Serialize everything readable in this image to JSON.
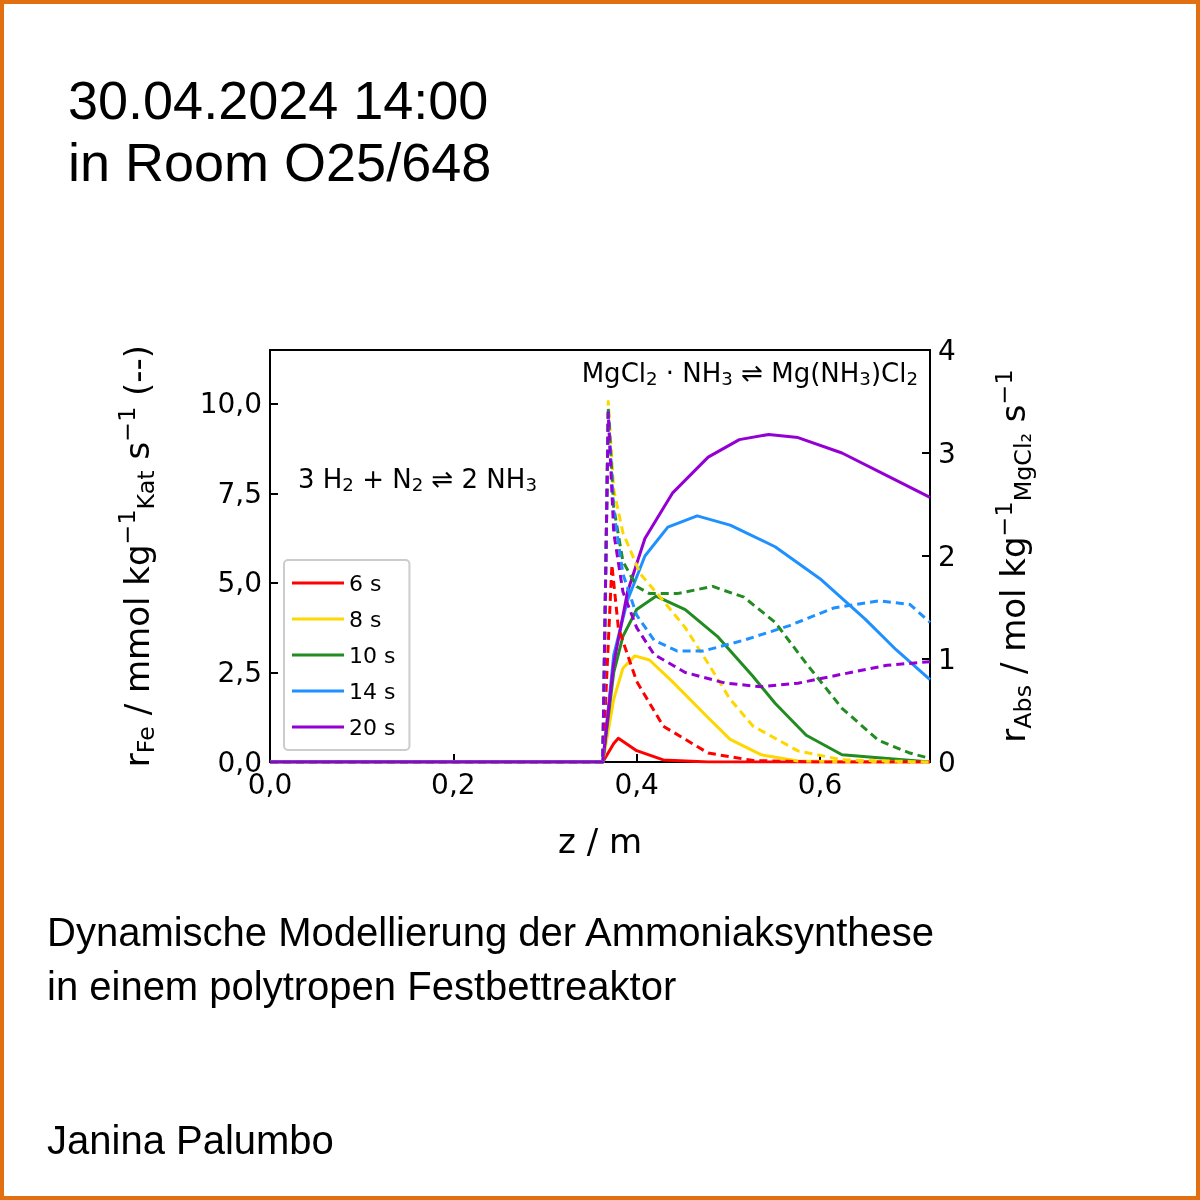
{
  "chart_data": {
    "type": "line",
    "title": "30.04.2024 14:00",
    "subtitle": "in Room O25/648",
    "xlabel": "z / m",
    "ylabel": "r$_{Fe}$ / mmol kg$^{−1}$$_{Kat}$ s$^{−1}$ (--)",
    "y2label": "r$_{Abs}$ / mol kg$^{−1}$$_{MgCl₂}$ s$^{−1}$",
    "annotations": [
      "3 H$_{2}$ + N$_{2}$ ⇌ 2 NH$_{3}$",
      "MgCl$_{2}$ · NH$_{3}$ ⇌ Mg(NH$_{3}$)Cl$_{2}$",
      "Dynamische Modellierung der Ammoniaksynthese\nin einem polytropen Festbettreaktor",
      "Janina Palumbo"
    ],
    "xlim": [
      0,
      0.72
    ],
    "xticks": [
      {
        "value": 0,
        "label": "0,0"
      },
      {
        "value": 0.2,
        "label": "0,2"
      },
      {
        "value": 0.4,
        "label": "0,4"
      },
      {
        "value": 0.6,
        "label": "0,6"
      }
    ],
    "ylim": [
      0,
      11.5
    ],
    "yticks": [
      {
        "value": 0,
        "label": "0,0"
      },
      {
        "value": 2.5,
        "label": "2,5"
      },
      {
        "value": 5,
        "label": "5,0"
      },
      {
        "value": 7.5,
        "label": "7,5"
      },
      {
        "value": 10,
        "label": "10,0"
      }
    ],
    "y2lim": [
      0,
      4
    ],
    "y2ticks": [
      0,
      1,
      2,
      3,
      4
    ],
    "grid": false,
    "legend": "bottom left",
    "marker": "none",
    "series": [
      {
        "name": "6 s",
        "color": "#ff0000",
        "axis": "y2",
        "line_style": "solid",
        "x": [
          0,
          0.363,
          0.375,
          0.38,
          0.4,
          0.429,
          0.478,
          0.72
        ],
        "values": [
          0,
          0,
          0.18,
          0.23,
          0.11,
          0.02,
          0,
          0
        ]
      },
      {
        "name": "8 s",
        "color": "#ffd700",
        "axis": "y2",
        "line_style": "solid",
        "x": [
          0,
          0.363,
          0.375,
          0.385,
          0.398,
          0.414,
          0.439,
          0.478,
          0.502,
          0.536,
          0.576,
          0.65,
          0.72
        ],
        "values": [
          0,
          0,
          0.61,
          0.91,
          1.03,
          0.99,
          0.78,
          0.43,
          0.22,
          0.07,
          0.01,
          0,
          0
        ]
      },
      {
        "name": "10 s",
        "color": "#228b22",
        "axis": "y2",
        "line_style": "solid",
        "x": [
          0,
          0.363,
          0.375,
          0.385,
          0.4,
          0.421,
          0.453,
          0.488,
          0.527,
          0.551,
          0.585,
          0.624,
          0.673,
          0.72
        ],
        "values": [
          0,
          0,
          0.87,
          1.22,
          1.48,
          1.61,
          1.48,
          1.22,
          0.83,
          0.57,
          0.26,
          0.07,
          null,
          0
        ]
      },
      {
        "name": "14 s",
        "color": "#1e90ff",
        "axis": "y2",
        "line_style": "solid",
        "x": [
          0,
          0.363,
          0.375,
          0.39,
          0.409,
          0.434,
          0.466,
          0.502,
          0.551,
          0.6,
          0.649,
          0.683,
          0.72
        ],
        "values": [
          0,
          0,
          1.04,
          1.57,
          2.0,
          2.28,
          2.39,
          2.3,
          2.09,
          1.78,
          1.39,
          1.09,
          0.8
        ]
      },
      {
        "name": "20 s",
        "color": "#9400d3",
        "axis": "y2",
        "line_style": "solid",
        "x": [
          0,
          0.363,
          0.375,
          0.39,
          0.409,
          0.439,
          0.478,
          0.512,
          0.544,
          0.576,
          0.624,
          0.673,
          0.72
        ],
        "values": [
          0,
          0,
          0.96,
          1.65,
          2.17,
          2.61,
          2.96,
          3.13,
          3.18,
          3.15,
          3.0,
          2.78,
          2.57
        ]
      },
      {
        "color": "#ff0000",
        "axis": "y",
        "line_style": "dashed",
        "x": [
          0,
          0.363,
          0.369,
          0.373,
          0.38,
          0.4,
          0.429,
          0.478,
          0.527,
          0.6,
          0.72
        ],
        "values": [
          0,
          0,
          null,
          5.5,
          3.75,
          2.25,
          1.0,
          0.25,
          0.04,
          0,
          0
        ]
      },
      {
        "color": "#ffd700",
        "axis": "y",
        "line_style": "dashed",
        "x": [
          0,
          0.363,
          0.369,
          0.375,
          0.385,
          0.404,
          0.429,
          0.453,
          0.478,
          0.502,
          0.527,
          0.576,
          0.624,
          0.72
        ],
        "values": [
          0,
          0,
          10.06,
          7.6,
          6.4,
          5.25,
          4.5,
          3.75,
          2.75,
          1.75,
          1.0,
          0.31,
          0.06,
          0
        ]
      },
      {
        "color": "#228b22",
        "axis": "y",
        "line_style": "dashed",
        "x": [
          0,
          0.363,
          0.369,
          0.375,
          0.385,
          0.4,
          0.414,
          0.444,
          0.483,
          0.517,
          0.551,
          0.585,
          0.624,
          0.664,
          0.698,
          0.72
        ],
        "values": [
          0,
          0,
          9.9,
          7.1,
          5.6,
          4.9,
          4.7,
          4.7,
          4.9,
          4.6,
          3.9,
          2.75,
          1.5,
          0.6,
          0.25,
          0.1
        ]
      },
      {
        "color": "#1e90ff",
        "axis": "y",
        "line_style": "dashed",
        "x": [
          0,
          0.363,
          0.369,
          0.375,
          0.385,
          0.4,
          0.419,
          0.444,
          0.473,
          0.517,
          0.566,
          0.615,
          0.664,
          0.698,
          0.72
        ],
        "values": [
          0,
          0,
          9.75,
          7.0,
          5.25,
          4.1,
          3.4,
          3.1,
          3.1,
          3.4,
          3.8,
          4.3,
          4.5,
          4.4,
          3.9
        ]
      },
      {
        "color": "#9400d3",
        "axis": "y",
        "line_style": "dashed",
        "x": [
          0,
          0.363,
          0.369,
          0.375,
          0.385,
          0.4,
          0.419,
          0.453,
          0.497,
          0.536,
          0.576,
          0.624,
          0.673,
          0.72
        ],
        "values": [
          0,
          0,
          9.75,
          6.4,
          4.75,
          3.75,
          3.0,
          2.5,
          2.2,
          2.1,
          2.2,
          2.45,
          2.7,
          2.8
        ]
      }
    ]
  }
}
